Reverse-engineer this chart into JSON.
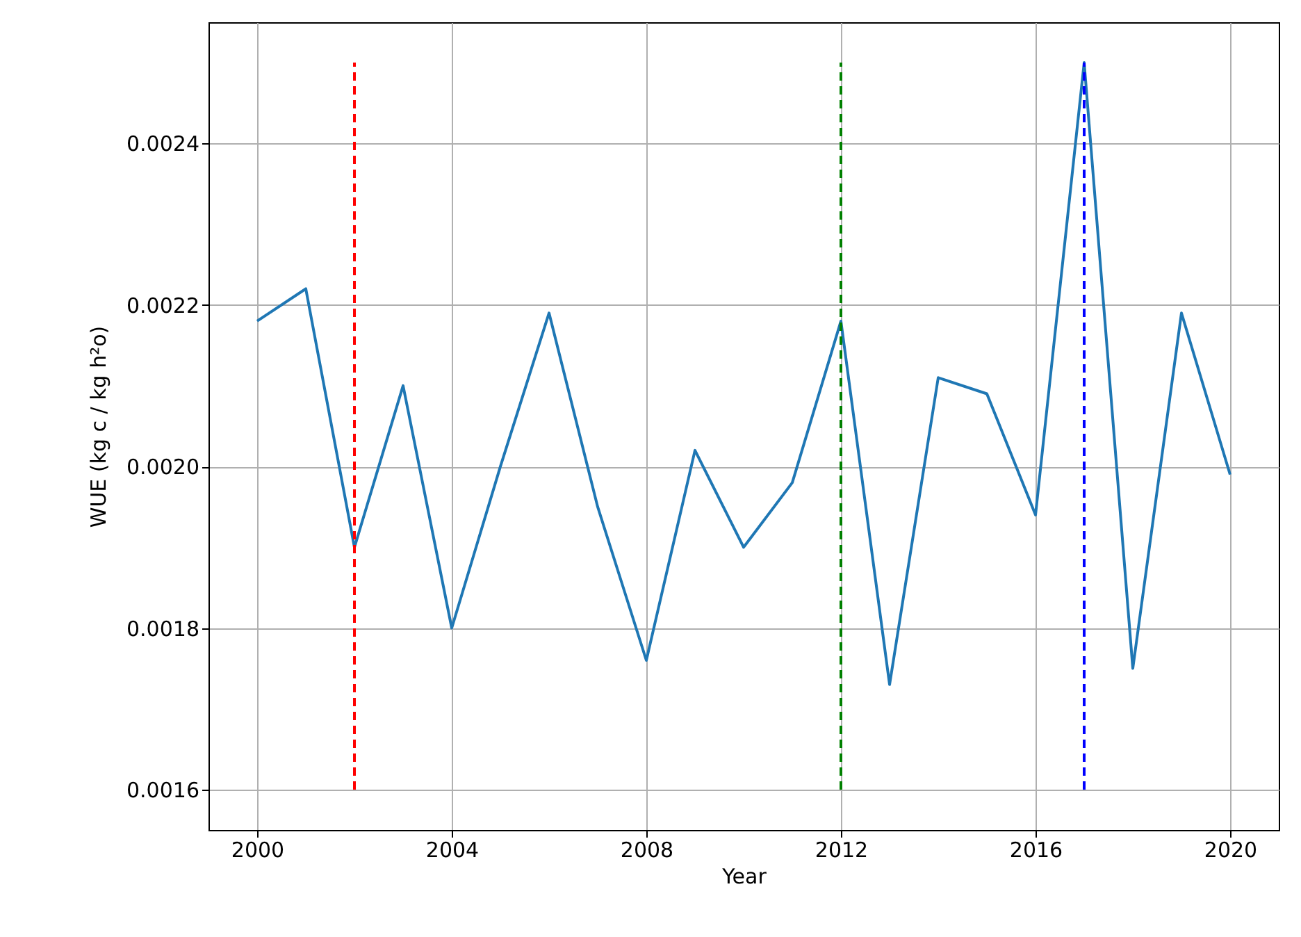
{
  "chart_data": {
    "type": "line",
    "xlabel": "Year",
    "ylabel": "WUE (kg c / kg h²o)",
    "x": [
      2000,
      2001,
      2002,
      2003,
      2004,
      2005,
      2006,
      2007,
      2008,
      2009,
      2010,
      2011,
      2012,
      2013,
      2014,
      2015,
      2016,
      2017,
      2018,
      2019,
      2020
    ],
    "series": [
      {
        "color": "#1f77b4",
        "values": [
          0.00218,
          0.00222,
          0.0019,
          0.0021,
          0.0018,
          0.002,
          0.00219,
          0.00195,
          0.00176,
          0.00202,
          0.0019,
          0.00198,
          0.00218,
          0.00173,
          0.00211,
          0.00209,
          0.00194,
          0.0025,
          0.00175,
          0.00219,
          0.00199
        ]
      },
      {
        "color": "#ff0000",
        "line_style": "dashed",
        "x": [
          2002,
          2002
        ],
        "values": [
          0.0016,
          0.0025
        ]
      },
      {
        "color": "#008000",
        "line_style": "dashed",
        "x": [
          2012,
          2012
        ],
        "values": [
          0.0016,
          0.0025
        ]
      },
      {
        "color": "#0000ff",
        "line_style": "dashed",
        "x": [
          2017,
          2017
        ],
        "values": [
          0.0016,
          0.0025
        ]
      }
    ],
    "xlim": [
      1999,
      2021
    ],
    "xticks": [
      2000,
      2004,
      2008,
      2012,
      2016,
      2020
    ],
    "ylim": [
      0.00155,
      0.00255
    ],
    "yticks": [
      0.0016,
      0.0018,
      {
        "value": 0.002,
        "label": "0.0020"
      },
      0.0022,
      0.0024
    ],
    "grid": true,
    "line_style": "solid",
    "marker": "none"
  }
}
